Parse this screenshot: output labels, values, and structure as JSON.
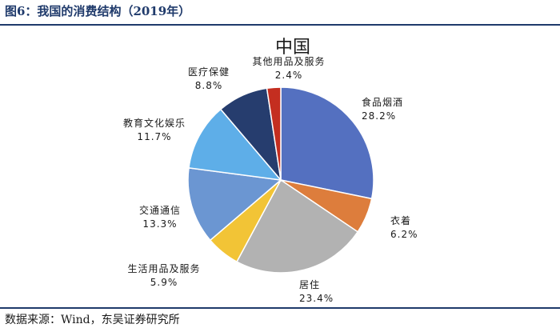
{
  "figure_title": "图6：我国的消费结构（2019年）",
  "source": "数据来源：Wind，东吴证券研究所",
  "chart_data": {
    "type": "pie",
    "title": "中国",
    "legend": "none",
    "slices": [
      {
        "name": "食品烟酒",
        "value": 28.2,
        "label": "28.2%",
        "color": "#5470c0"
      },
      {
        "name": "衣着",
        "value": 6.2,
        "label": "6.2%",
        "color": "#dd7d3c"
      },
      {
        "name": "居住",
        "value": 23.4,
        "label": "23.4%",
        "color": "#b2b2b2"
      },
      {
        "name": "生活用品及服务",
        "value": 5.9,
        "label": "5.9%",
        "color": "#f2c436"
      },
      {
        "name": "交通通信",
        "value": 13.3,
        "label": "13.3%",
        "color": "#6b96d2"
      },
      {
        "name": "教育文化娱乐",
        "value": 11.7,
        "label": "11.7%",
        "color": "#5eaee8"
      },
      {
        "name": "医疗保健",
        "value": 8.8,
        "label": "8.8%",
        "color": "#263d6e"
      },
      {
        "name": "其他用品及服务",
        "value": 2.4,
        "label": "2.4%",
        "color": "#c42e20"
      }
    ]
  }
}
